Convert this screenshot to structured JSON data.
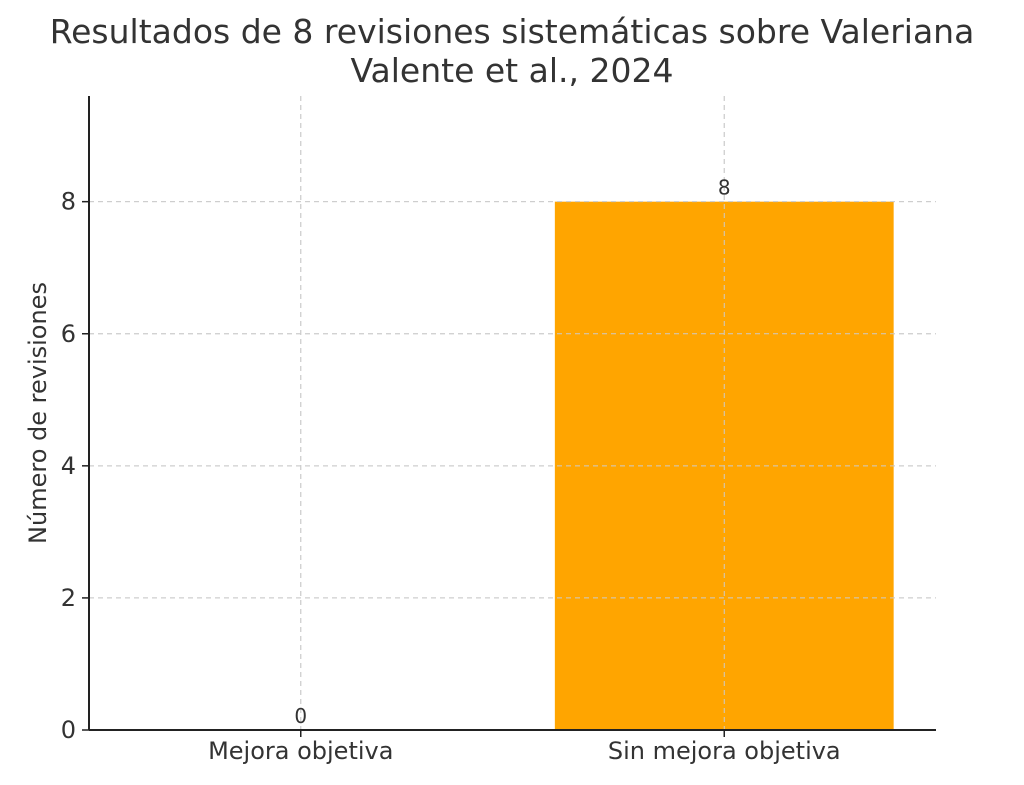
{
  "chart_data": {
    "type": "bar",
    "title": "Resultados de 8 revisiones sistemáticas sobre Valeriana",
    "subtitle": "Valente et al., 2024",
    "xlabel": "",
    "ylabel": "Número de revisiones",
    "categories": [
      "Mejora objetiva",
      "Sin mejora objetiva"
    ],
    "values": [
      0,
      8
    ],
    "data_labels": [
      "0",
      "8"
    ],
    "bar_color": "#ffa500",
    "ylim": [
      0,
      9.6
    ],
    "yticks": [
      0,
      2,
      4,
      6,
      8
    ],
    "ytick_labels": [
      "0",
      "2",
      "4",
      "6",
      "8"
    ],
    "grid": true,
    "legend": "none"
  }
}
